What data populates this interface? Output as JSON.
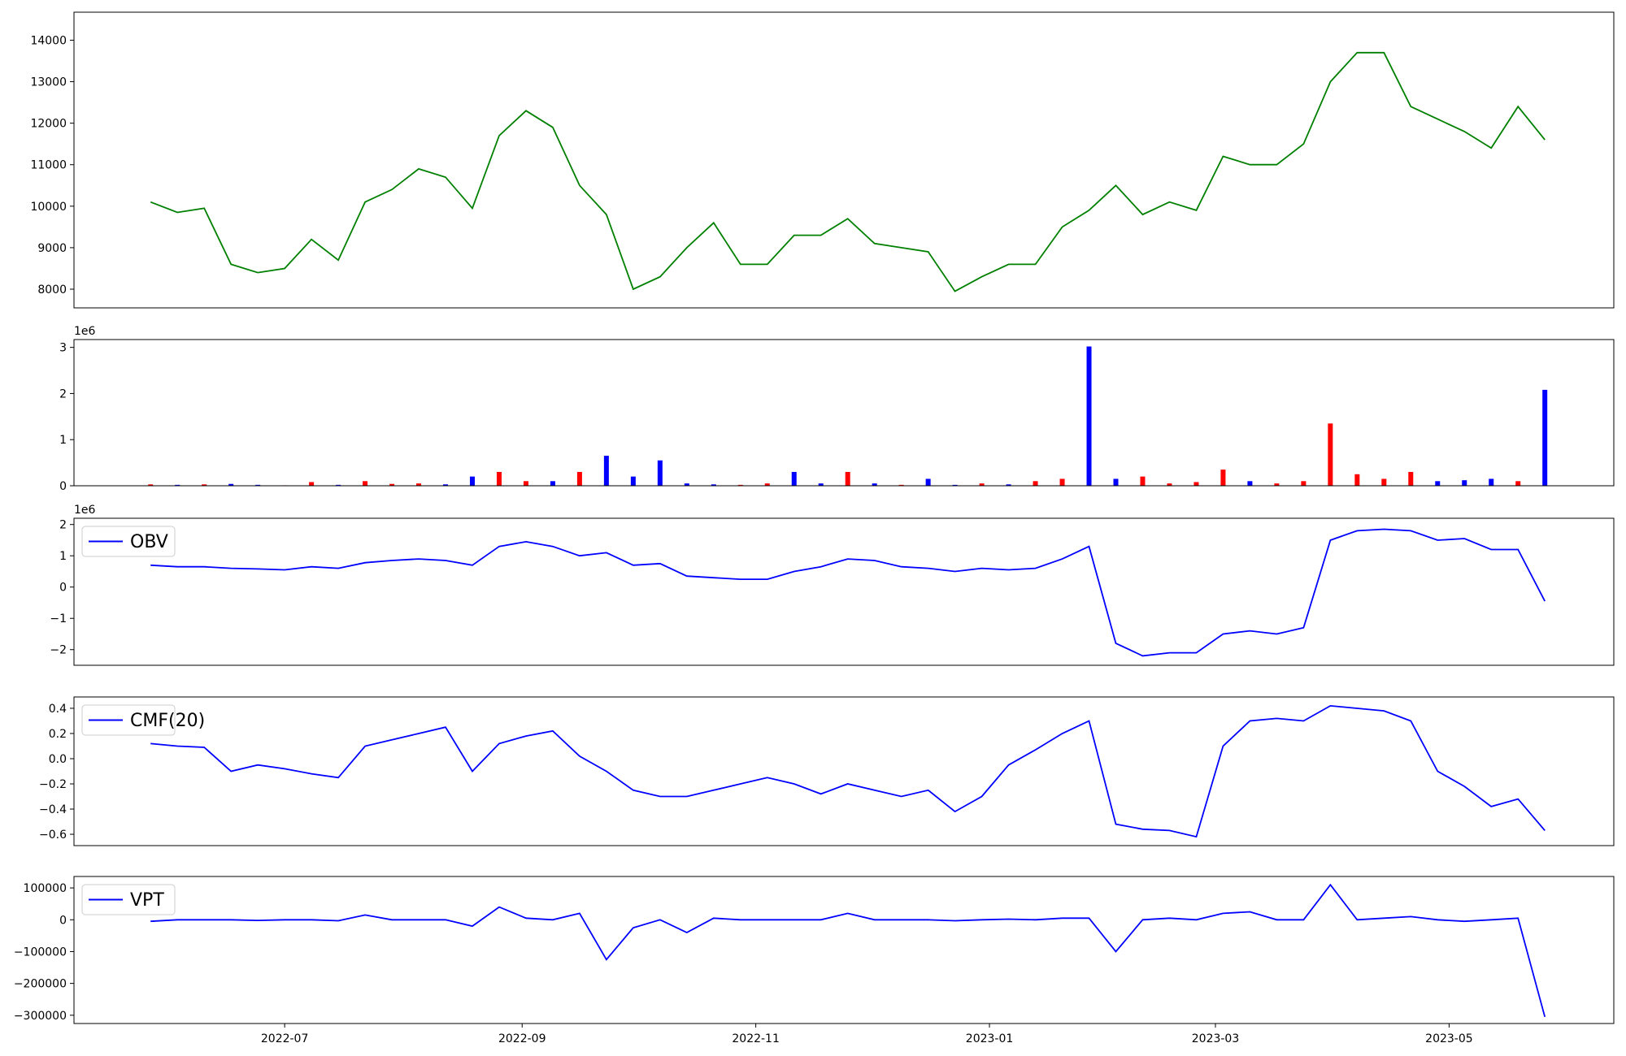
{
  "chart_data": [
    {
      "type": "line",
      "x": [
        "2022-05-27",
        "2022-06-03",
        "2022-06-10",
        "2022-06-17",
        "2022-06-24",
        "2022-07-01",
        "2022-07-08",
        "2022-07-15",
        "2022-07-22",
        "2022-07-29",
        "2022-08-05",
        "2022-08-12",
        "2022-08-19",
        "2022-08-26",
        "2022-09-02",
        "2022-09-09",
        "2022-09-16",
        "2022-09-23",
        "2022-09-30",
        "2022-10-07",
        "2022-10-14",
        "2022-10-21",
        "2022-10-28",
        "2022-11-04",
        "2022-11-11",
        "2022-11-18",
        "2022-11-25",
        "2022-12-02",
        "2022-12-09",
        "2022-12-16",
        "2022-12-23",
        "2022-12-30",
        "2023-01-06",
        "2023-01-13",
        "2023-01-20",
        "2023-01-27",
        "2023-02-03",
        "2023-02-10",
        "2023-02-17",
        "2023-02-24",
        "2023-03-03",
        "2023-03-10",
        "2023-03-17",
        "2023-03-24",
        "2023-03-31",
        "2023-04-07",
        "2023-04-14",
        "2023-04-21",
        "2023-04-28",
        "2023-05-05",
        "2023-05-12",
        "2023-05-19",
        "2023-05-26"
      ],
      "values": [
        10100,
        9850,
        9950,
        8600,
        8400,
        8500,
        9200,
        8700,
        10100,
        10400,
        10900,
        10700,
        9950,
        11700,
        12300,
        11900,
        10500,
        9800,
        8000,
        8300,
        9000,
        9600,
        8600,
        8600,
        9300,
        9300,
        9700,
        9100,
        9000,
        8900,
        7950,
        8300,
        8600,
        8600,
        9500,
        9900,
        10500,
        9800,
        10100,
        9900,
        11200,
        11000,
        11000,
        11500,
        13000,
        13700,
        13700,
        12400,
        12100,
        11800,
        11400,
        12400,
        11600
      ],
      "color": "#008000",
      "xlim": [
        "2022-05-07",
        "2023-06-13"
      ],
      "ylim": [
        7550,
        14675
      ],
      "yticks": [
        8000,
        9000,
        10000,
        11000,
        12000,
        13000,
        14000
      ]
    },
    {
      "type": "bar",
      "x": [
        "2022-05-27",
        "2022-06-03",
        "2022-06-10",
        "2022-06-17",
        "2022-06-24",
        "2022-07-01",
        "2022-07-08",
        "2022-07-15",
        "2022-07-22",
        "2022-07-29",
        "2022-08-05",
        "2022-08-12",
        "2022-08-19",
        "2022-08-26",
        "2022-09-02",
        "2022-09-09",
        "2022-09-16",
        "2022-09-23",
        "2022-09-30",
        "2022-10-07",
        "2022-10-14",
        "2022-10-21",
        "2022-10-28",
        "2022-11-04",
        "2022-11-11",
        "2022-11-18",
        "2022-11-25",
        "2022-12-02",
        "2022-12-09",
        "2022-12-16",
        "2022-12-23",
        "2022-12-30",
        "2023-01-06",
        "2023-01-13",
        "2023-01-20",
        "2023-01-27",
        "2023-02-03",
        "2023-02-10",
        "2023-02-17",
        "2023-02-24",
        "2023-03-03",
        "2023-03-10",
        "2023-03-17",
        "2023-03-24",
        "2023-03-31",
        "2023-04-07",
        "2023-04-14",
        "2023-04-21",
        "2023-04-28",
        "2023-05-05",
        "2023-05-12",
        "2023-05-19",
        "2023-05-26"
      ],
      "values": [
        0.03,
        0.02,
        0.03,
        0.04,
        0.02,
        0.01,
        0.08,
        0.02,
        0.1,
        0.04,
        0.05,
        0.03,
        0.2,
        0.3,
        0.1,
        0.1,
        0.3,
        0.65,
        0.2,
        0.55,
        0.05,
        0.03,
        0.02,
        0.05,
        0.3,
        0.05,
        0.3,
        0.05,
        0.02,
        0.15,
        0.02,
        0.05,
        0.03,
        0.1,
        0.15,
        3.02,
        0.15,
        0.2,
        0.05,
        0.08,
        0.35,
        0.1,
        0.05,
        0.1,
        1.35,
        0.25,
        0.15,
        0.3,
        0.1,
        0.12,
        0.15,
        0.1,
        2.08
      ],
      "colors": [
        "#ff0000",
        "#0000ff",
        "#ff0000",
        "#0000ff",
        "#0000ff",
        "#ff0000",
        "#ff0000",
        "#0000ff",
        "#ff0000",
        "#ff0000",
        "#ff0000",
        "#0000ff",
        "#0000ff",
        "#ff0000",
        "#ff0000",
        "#0000ff",
        "#ff0000",
        "#0000ff",
        "#0000ff",
        "#0000ff",
        "#0000ff",
        "#0000ff",
        "#ff0000",
        "#ff0000",
        "#0000ff",
        "#0000ff",
        "#ff0000",
        "#0000ff",
        "#ff0000",
        "#0000ff",
        "#0000ff",
        "#ff0000",
        "#0000ff",
        "#ff0000",
        "#ff0000",
        "#0000ff",
        "#0000ff",
        "#ff0000",
        "#ff0000",
        "#ff0000",
        "#ff0000",
        "#0000ff",
        "#ff0000",
        "#ff0000",
        "#ff0000",
        "#ff0000",
        "#ff0000",
        "#ff0000",
        "#0000ff",
        "#0000ff",
        "#0000ff",
        "#ff0000",
        "#0000ff"
      ],
      "xlim": [
        "2022-05-07",
        "2023-06-13"
      ],
      "ylim": [
        0,
        3.17
      ],
      "yticks": [
        0,
        1,
        2,
        3
      ],
      "y_offset_label": "1e6"
    },
    {
      "type": "line",
      "x": [
        "2022-05-27",
        "2022-06-03",
        "2022-06-10",
        "2022-06-17",
        "2022-06-24",
        "2022-07-01",
        "2022-07-08",
        "2022-07-15",
        "2022-07-22",
        "2022-07-29",
        "2022-08-05",
        "2022-08-12",
        "2022-08-19",
        "2022-08-26",
        "2022-09-02",
        "2022-09-09",
        "2022-09-16",
        "2022-09-23",
        "2022-09-30",
        "2022-10-07",
        "2022-10-14",
        "2022-10-21",
        "2022-10-28",
        "2022-11-04",
        "2022-11-11",
        "2022-11-18",
        "2022-11-25",
        "2022-12-02",
        "2022-12-09",
        "2022-12-16",
        "2022-12-23",
        "2022-12-30",
        "2023-01-06",
        "2023-01-13",
        "2023-01-20",
        "2023-01-27",
        "2023-02-03",
        "2023-02-10",
        "2023-02-17",
        "2023-02-24",
        "2023-03-03",
        "2023-03-10",
        "2023-03-17",
        "2023-03-24",
        "2023-03-31",
        "2023-04-07",
        "2023-04-14",
        "2023-04-21",
        "2023-04-28",
        "2023-05-05",
        "2023-05-12",
        "2023-05-19",
        "2023-05-26"
      ],
      "series": [
        {
          "name": "OBV",
          "color": "#0000ff",
          "values": [
            0.7,
            0.65,
            0.65,
            0.6,
            0.58,
            0.55,
            0.65,
            0.6,
            0.78,
            0.85,
            0.9,
            0.85,
            0.7,
            1.3,
            1.45,
            1.3,
            1.0,
            1.1,
            0.7,
            0.75,
            0.35,
            0.3,
            0.25,
            0.25,
            0.5,
            0.65,
            0.9,
            0.85,
            0.65,
            0.6,
            0.5,
            0.6,
            0.55,
            0.6,
            0.9,
            1.3,
            -1.8,
            -2.2,
            -2.1,
            -2.1,
            -1.5,
            -1.4,
            -1.5,
            -1.3,
            1.5,
            1.8,
            1.85,
            1.8,
            1.5,
            1.55,
            1.2,
            1.2,
            -0.45
          ]
        }
      ],
      "legend": "upper left",
      "xlim": [
        "2022-05-07",
        "2023-06-13"
      ],
      "ylim": [
        -2.5,
        2.2
      ],
      "yticks": [
        {
          "value": -2,
          "label": "−2"
        },
        {
          "value": -1,
          "label": "−1"
        },
        0,
        1,
        2
      ],
      "y_offset_label": "1e6"
    },
    {
      "type": "line",
      "x": [
        "2022-05-27",
        "2022-06-03",
        "2022-06-10",
        "2022-06-17",
        "2022-06-24",
        "2022-07-01",
        "2022-07-08",
        "2022-07-15",
        "2022-07-22",
        "2022-07-29",
        "2022-08-05",
        "2022-08-12",
        "2022-08-19",
        "2022-08-26",
        "2022-09-02",
        "2022-09-09",
        "2022-09-16",
        "2022-09-23",
        "2022-09-30",
        "2022-10-07",
        "2022-10-14",
        "2022-10-21",
        "2022-10-28",
        "2022-11-04",
        "2022-11-11",
        "2022-11-18",
        "2022-11-25",
        "2022-12-02",
        "2022-12-09",
        "2022-12-16",
        "2022-12-23",
        "2022-12-30",
        "2023-01-06",
        "2023-01-13",
        "2023-01-20",
        "2023-01-27",
        "2023-02-03",
        "2023-02-10",
        "2023-02-17",
        "2023-02-24",
        "2023-03-03",
        "2023-03-10",
        "2023-03-17",
        "2023-03-24",
        "2023-03-31",
        "2023-04-07",
        "2023-04-14",
        "2023-04-21",
        "2023-04-28",
        "2023-05-05",
        "2023-05-12",
        "2023-05-19",
        "2023-05-26"
      ],
      "series": [
        {
          "name": "CMF(20)",
          "color": "#0000ff",
          "values": [
            0.12,
            0.1,
            0.09,
            -0.1,
            -0.05,
            -0.08,
            -0.12,
            -0.15,
            0.1,
            0.15,
            0.2,
            0.25,
            -0.1,
            0.12,
            0.18,
            0.22,
            0.02,
            -0.1,
            -0.25,
            -0.3,
            -0.3,
            -0.25,
            -0.2,
            -0.15,
            -0.2,
            -0.28,
            -0.2,
            -0.25,
            -0.3,
            -0.25,
            -0.42,
            -0.3,
            -0.05,
            0.07,
            0.2,
            0.3,
            -0.52,
            -0.56,
            -0.57,
            -0.62,
            0.1,
            0.3,
            0.32,
            0.3,
            0.42,
            0.4,
            0.38,
            0.3,
            -0.1,
            -0.22,
            -0.38,
            -0.32,
            -0.57
          ]
        }
      ],
      "legend": "upper left",
      "xlim": [
        "2022-05-07",
        "2023-06-13"
      ],
      "ylim": [
        -0.69,
        0.49
      ],
      "yticks": [
        {
          "value": -0.6,
          "label": "−0.6"
        },
        {
          "value": -0.4,
          "label": "−0.4"
        },
        {
          "value": -0.2,
          "label": "−0.2"
        },
        {
          "value": 0,
          "label": "0.0"
        },
        0.2,
        0.4
      ]
    },
    {
      "type": "line",
      "x": [
        "2022-05-27",
        "2022-06-03",
        "2022-06-10",
        "2022-06-17",
        "2022-06-24",
        "2022-07-01",
        "2022-07-08",
        "2022-07-15",
        "2022-07-22",
        "2022-07-29",
        "2022-08-05",
        "2022-08-12",
        "2022-08-19",
        "2022-08-26",
        "2022-09-02",
        "2022-09-09",
        "2022-09-16",
        "2022-09-23",
        "2022-09-30",
        "2022-10-07",
        "2022-10-14",
        "2022-10-21",
        "2022-10-28",
        "2022-11-04",
        "2022-11-11",
        "2022-11-18",
        "2022-11-25",
        "2022-12-02",
        "2022-12-09",
        "2022-12-16",
        "2022-12-23",
        "2022-12-30",
        "2023-01-06",
        "2023-01-13",
        "2023-01-20",
        "2023-01-27",
        "2023-02-03",
        "2023-02-10",
        "2023-02-17",
        "2023-02-24",
        "2023-03-03",
        "2023-03-10",
        "2023-03-17",
        "2023-03-24",
        "2023-03-31",
        "2023-04-07",
        "2023-04-14",
        "2023-04-21",
        "2023-04-28",
        "2023-05-05",
        "2023-05-12",
        "2023-05-19",
        "2023-05-26"
      ],
      "series": [
        {
          "name": "VPT",
          "color": "#0000ff",
          "values": [
            -5000,
            0,
            0,
            0,
            -2000,
            0,
            0,
            -3000,
            15000,
            0,
            0,
            0,
            -20000,
            40000,
            5000,
            0,
            20000,
            -125000,
            -25000,
            0,
            -40000,
            5000,
            0,
            0,
            0,
            0,
            20000,
            0,
            0,
            0,
            -3000,
            0,
            2000,
            0,
            5000,
            5000,
            -100000,
            0,
            5000,
            0,
            20000,
            25000,
            0,
            0,
            110000,
            0,
            5000,
            10000,
            0,
            -5000,
            0,
            5000,
            -305000
          ]
        }
      ],
      "legend": "upper left",
      "xlim": [
        "2022-05-07",
        "2023-06-13"
      ],
      "ylim": [
        -326000,
        136000
      ],
      "yticks": [
        {
          "value": -300000,
          "label": "−300000"
        },
        {
          "value": -200000,
          "label": "−200000"
        },
        {
          "value": -100000,
          "label": "−100000"
        },
        0,
        100000
      ],
      "xticks": [
        {
          "value": "2022-07-01",
          "label": "2022-07"
        },
        {
          "value": "2022-09-01",
          "label": "2022-09"
        },
        {
          "value": "2022-11-01",
          "label": "2022-11"
        },
        {
          "value": "2023-01-01",
          "label": "2023-01"
        },
        {
          "value": "2023-03-01",
          "label": "2023-03"
        },
        {
          "value": "2023-05-01",
          "label": "2023-05"
        }
      ]
    }
  ]
}
